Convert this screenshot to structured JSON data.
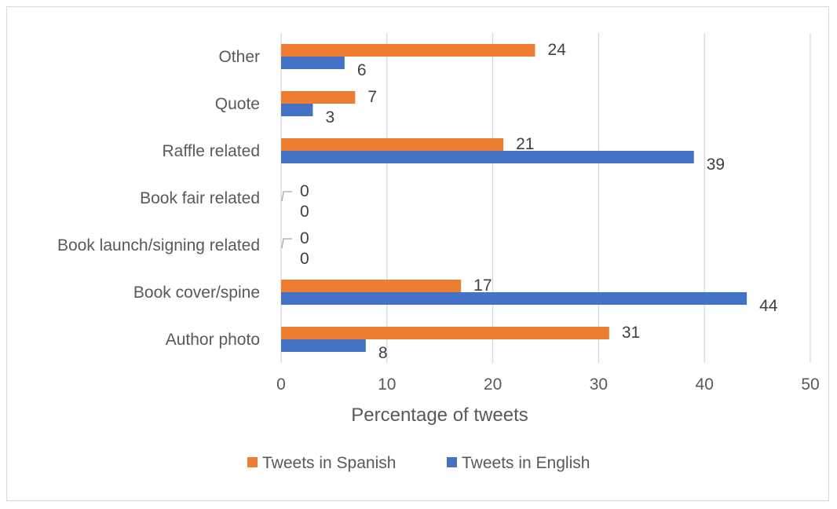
{
  "chart_data": {
    "type": "bar",
    "orientation": "horizontal",
    "categories": [
      "Other",
      "Quote",
      "Raffle related",
      "Book fair related",
      "Book launch/signing related",
      "Book cover/spine",
      "Author photo"
    ],
    "series": [
      {
        "name": "Tweets in Spanish",
        "color": "#ED7D31",
        "values": [
          24,
          7,
          21,
          0,
          0,
          17,
          31
        ]
      },
      {
        "name": "Tweets in English",
        "color": "#4472C4",
        "values": [
          6,
          3,
          39,
          0,
          0,
          44,
          8
        ]
      }
    ],
    "xlabel": "Percentage of tweets",
    "ylabel": "",
    "title": "",
    "xlim": [
      0,
      50
    ],
    "xticks": [
      0,
      10,
      20,
      30,
      40,
      50
    ],
    "grid": true,
    "legend_position": "bottom"
  }
}
